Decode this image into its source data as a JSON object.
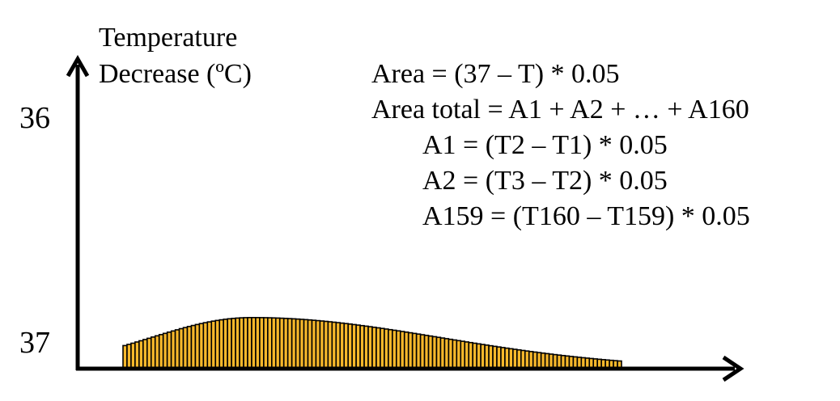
{
  "chart_data": {
    "type": "bar",
    "ylabel_lines": [
      "Temperature",
      "Decrease (ºC)"
    ],
    "xlabel": "",
    "ytick_labels": [
      {
        "value": 36,
        "label": "36"
      },
      {
        "value": 37,
        "label": "37"
      }
    ],
    "ylim": [
      37,
      35.7
    ],
    "bar_count": 124,
    "bar_color": "#F7B82B",
    "bar_stroke": "#000000",
    "curve": {
      "peak_index": 32,
      "peak_height": 0.2,
      "rise_width": 25,
      "fall_width": 47
    },
    "equations": [
      {
        "text": "Area = (37 – T) * 0.05",
        "indent": false
      },
      {
        "text": "Area total = A1 + A2 + … + A160",
        "indent": false
      },
      {
        "text": "A1 = (T2 – T1) * 0.05",
        "indent": true
      },
      {
        "text": "A2 = (T3 – T2) * 0.05",
        "indent": true
      },
      {
        "text": "A159 = (T160 – T159) * 0.05",
        "indent": true
      }
    ]
  }
}
